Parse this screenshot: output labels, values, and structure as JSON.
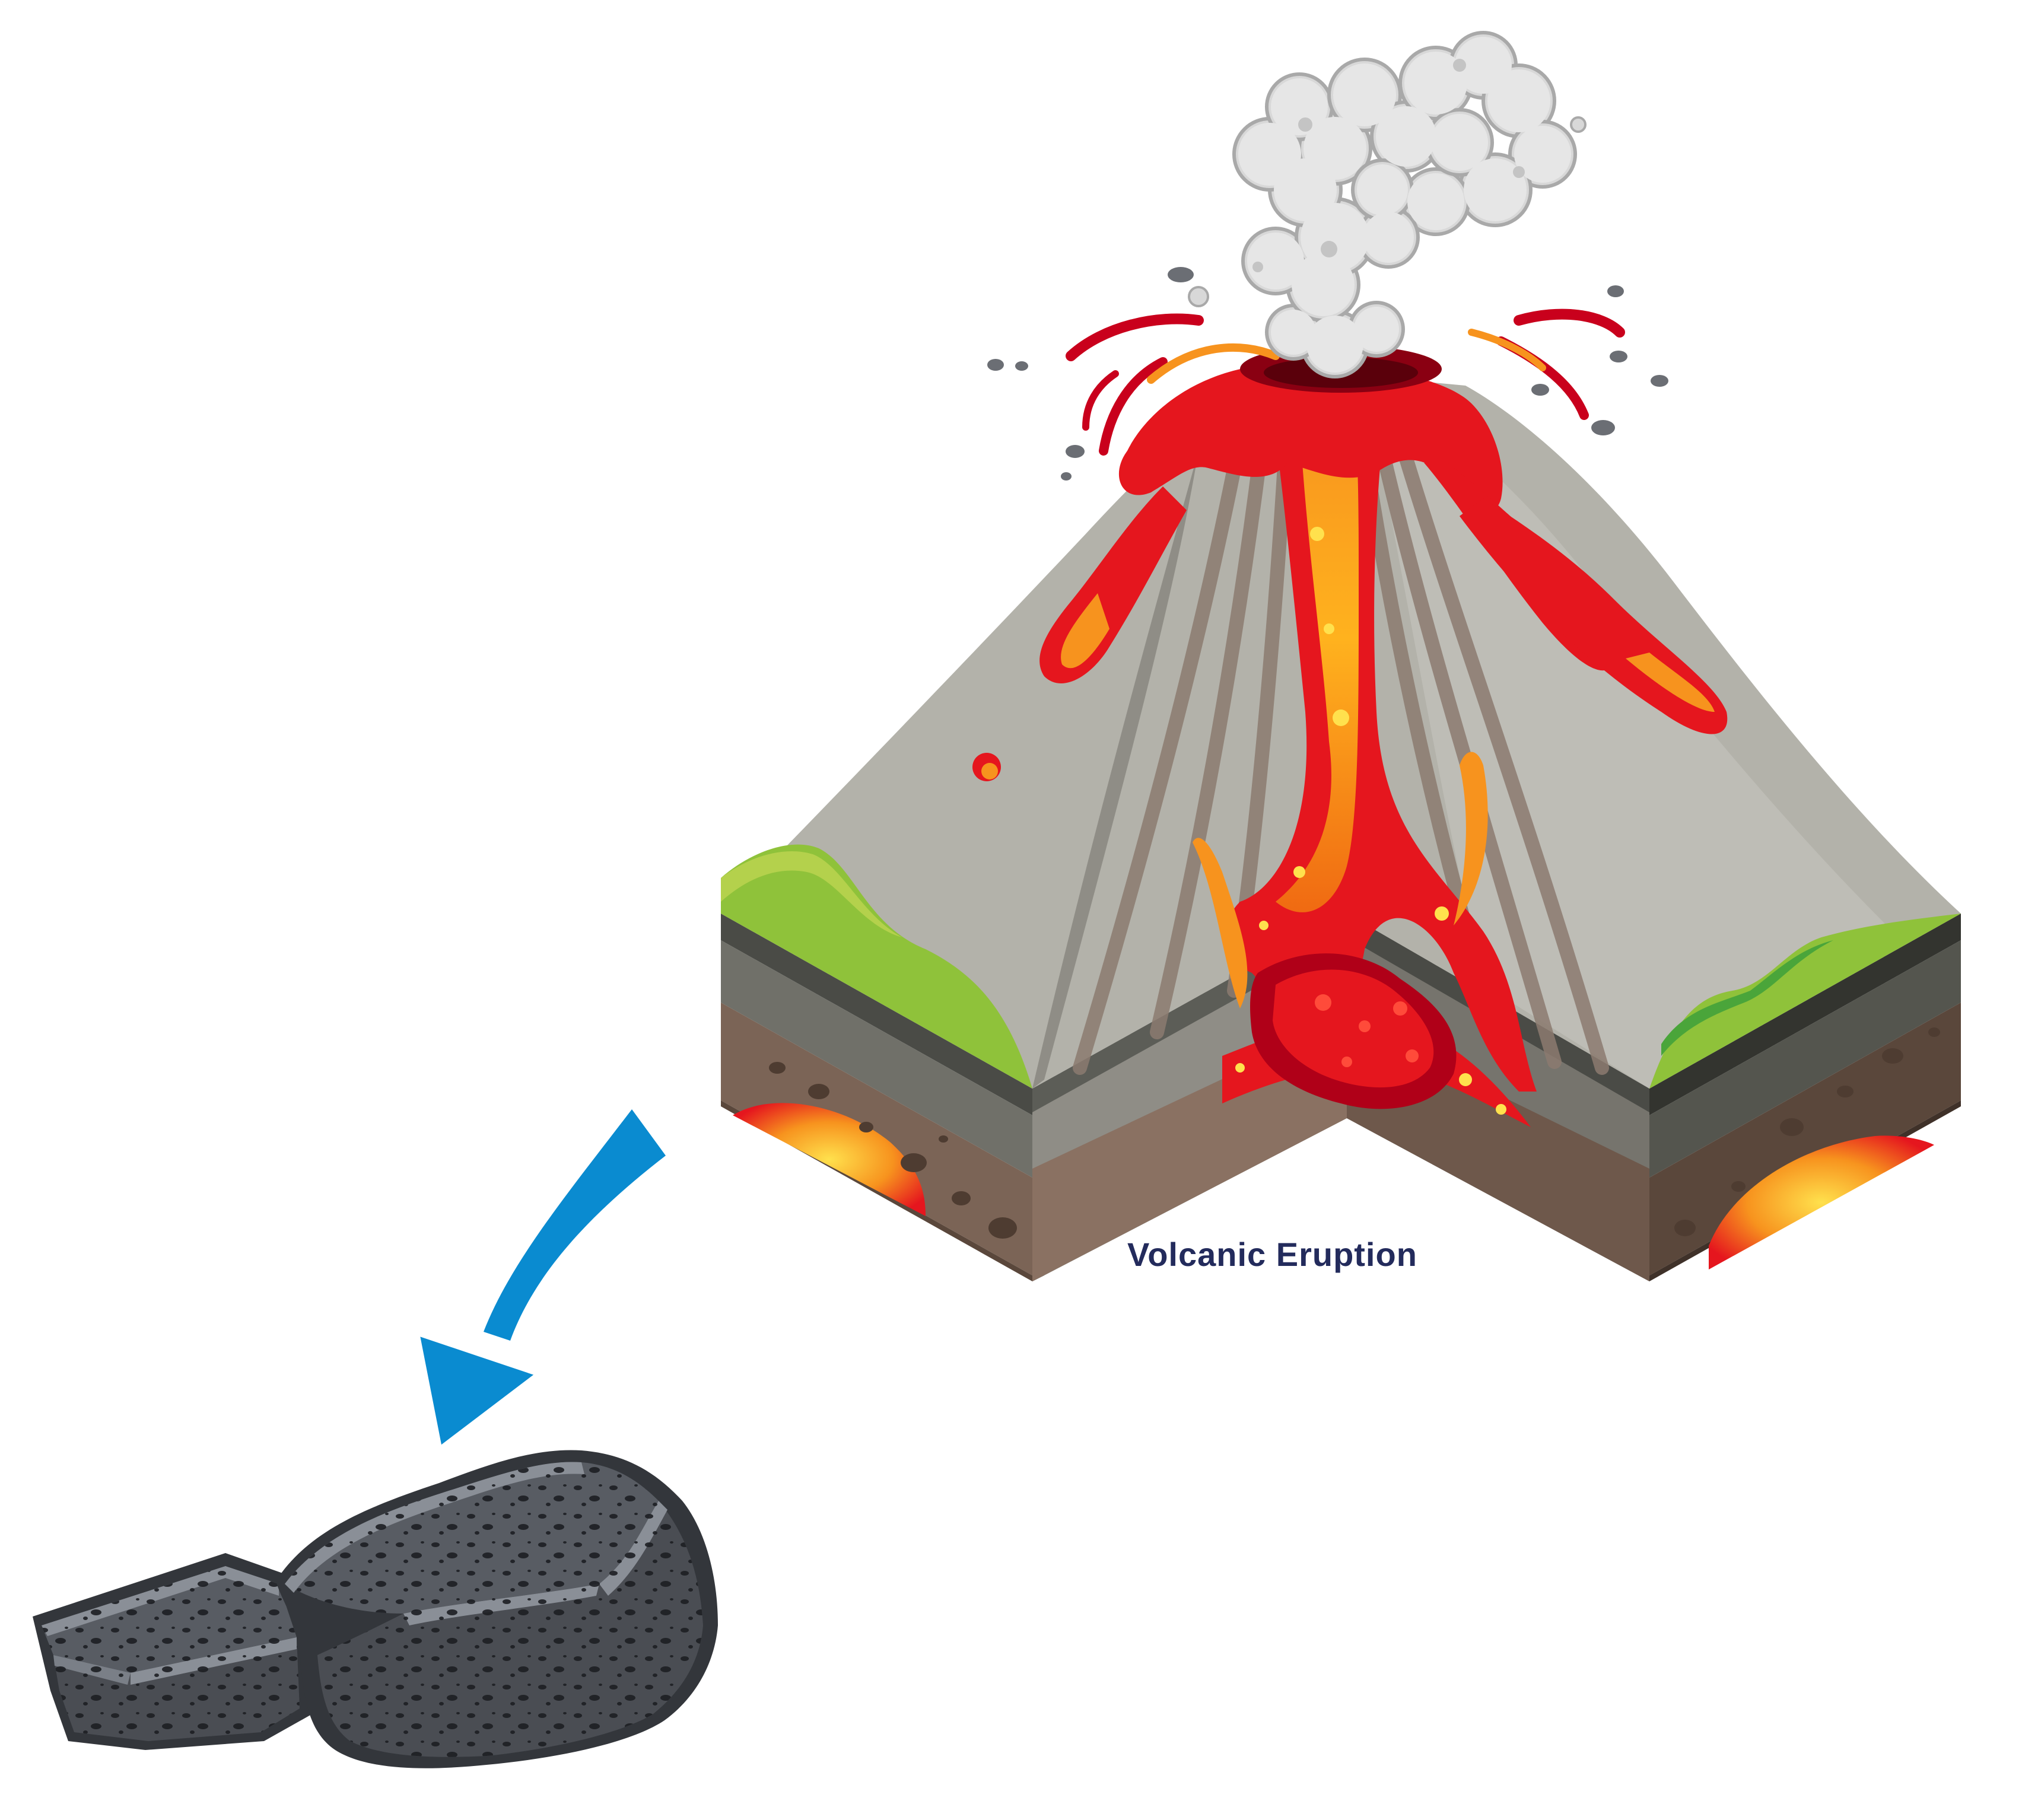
{
  "caption": "Volcanic Eruption",
  "icons": {
    "volcano": "volcano-cross-section-icon",
    "smoke": "smoke-cloud-icon",
    "arrow": "curved-arrow-icon",
    "rocks": "pumice-rocks-icon"
  },
  "colors": {
    "background": "#ffffff",
    "caption": "#232b5c",
    "arrow": "#0a8bd0",
    "lava_dark": "#c9001c",
    "lava_red": "#e5161e",
    "lava_orange": "#f7931e",
    "lava_yellow": "#ffe14d",
    "volcano_gray": "#b3b2aa",
    "volcano_shadow": "#8f8d86",
    "streak_brown": "#8c7b70",
    "grass": "#8fc23a",
    "grass_dark": "#4aa53a",
    "soil_top": "#4a4b46",
    "soil_mid": "#707069",
    "soil_brown": "#7b6456",
    "soil_dark": "#5a473b",
    "smoke": "#d8d8d8",
    "rock": "#585c63",
    "rock_light": "#8a8f97",
    "rock_dark": "#33363b"
  }
}
